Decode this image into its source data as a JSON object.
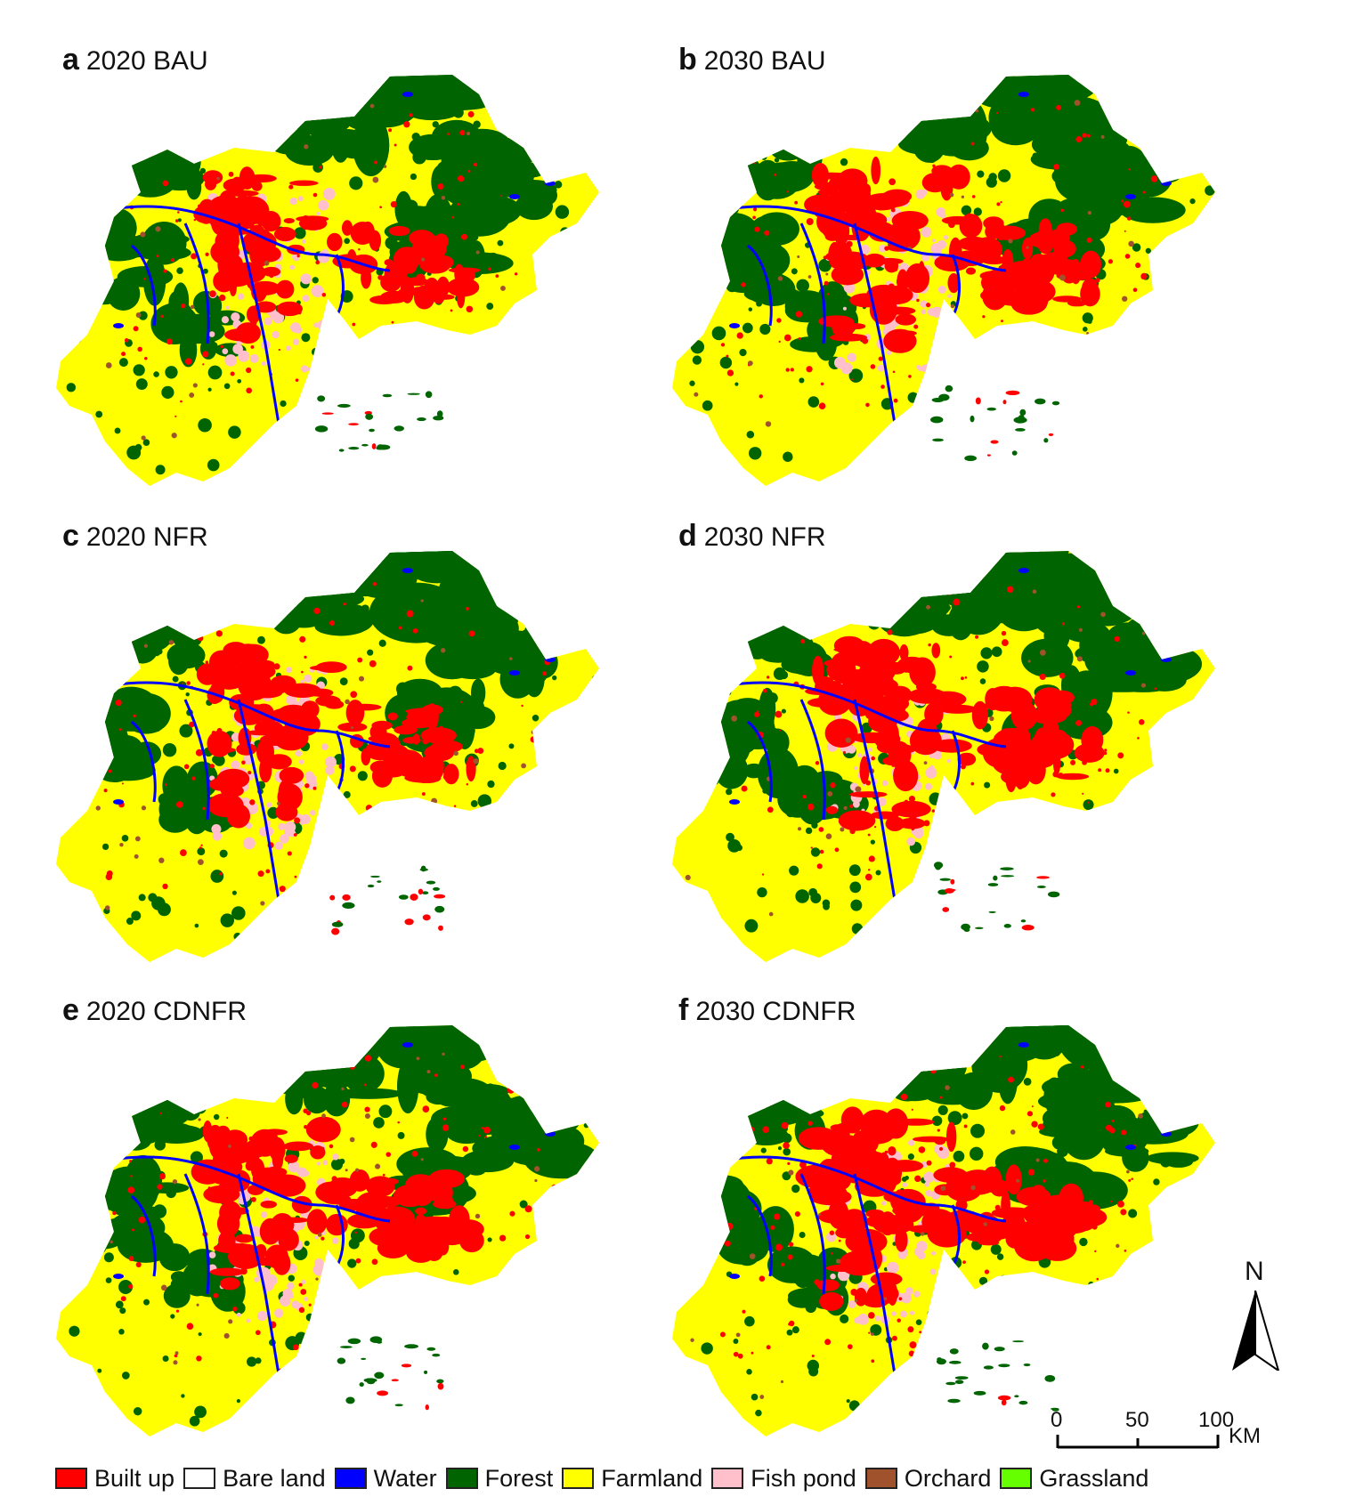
{
  "panels": [
    {
      "letter": "a",
      "title": "2020 BAU",
      "built_level": 1.0
    },
    {
      "letter": "b",
      "title": "2030 BAU",
      "built_level": 1.15
    },
    {
      "letter": "c",
      "title": "2020 NFR",
      "built_level": 1.05
    },
    {
      "letter": "d",
      "title": "2030 NFR",
      "built_level": 1.2
    },
    {
      "letter": "e",
      "title": "2020 CDNFR",
      "built_level": 1.05
    },
    {
      "letter": "f",
      "title": "2030 CDNFR",
      "built_level": 1.25
    }
  ],
  "north_arrow": {
    "label": "N"
  },
  "scale_bar": {
    "ticks": [
      "0",
      "50",
      "100"
    ],
    "unit": "KM"
  },
  "legend": [
    {
      "label": "Built up",
      "color": "#ff0000"
    },
    {
      "label": "Bare land",
      "color": "#ffffff"
    },
    {
      "label": "Water",
      "color": "#0000ff"
    },
    {
      "label": "Forest",
      "color": "#006400"
    },
    {
      "label": "Farmland",
      "color": "#ffff00"
    },
    {
      "label": "Fish pond",
      "color": "#ffc0cb"
    },
    {
      "label": "Orchard",
      "color": "#a0522d"
    },
    {
      "label": "Grassland",
      "color": "#66ff00"
    }
  ]
}
